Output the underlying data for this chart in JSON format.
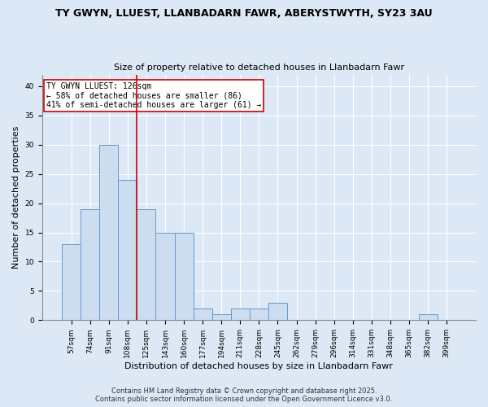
{
  "title1": "TY GWYN, LLUEST, LLANBADARN FAWR, ABERYSTWYTH, SY23 3AU",
  "title2": "Size of property relative to detached houses in Llanbadarn Fawr",
  "xlabel": "Distribution of detached houses by size in Llanbadarn Fawr",
  "ylabel": "Number of detached properties",
  "categories": [
    "57sqm",
    "74sqm",
    "91sqm",
    "108sqm",
    "125sqm",
    "143sqm",
    "160sqm",
    "177sqm",
    "194sqm",
    "211sqm",
    "228sqm",
    "245sqm",
    "262sqm",
    "279sqm",
    "296sqm",
    "314sqm",
    "331sqm",
    "348sqm",
    "365sqm",
    "382sqm",
    "399sqm"
  ],
  "values": [
    13,
    19,
    30,
    24,
    19,
    15,
    15,
    2,
    1,
    2,
    2,
    3,
    0,
    0,
    0,
    0,
    0,
    0,
    0,
    1,
    0
  ],
  "bar_color": "#ccddf0",
  "bar_edge_color": "#6699cc",
  "property_line_x": 3.5,
  "annotation_text1": "TY GWYN LLUEST: 126sqm",
  "annotation_text2": "← 58% of detached houses are smaller (86)",
  "annotation_text3": "41% of semi-detached houses are larger (61) →",
  "annotation_box_color": "white",
  "annotation_box_edge": "#cc0000",
  "vline_color": "#cc0000",
  "ylim": [
    0,
    42
  ],
  "yticks": [
    0,
    5,
    10,
    15,
    20,
    25,
    30,
    35,
    40
  ],
  "footer1": "Contains HM Land Registry data © Crown copyright and database right 2025.",
  "footer2": "Contains public sector information licensed under the Open Government Licence v3.0.",
  "bg_color": "#dce8f5",
  "plot_bg_color": "#dce8f5",
  "grid_color": "#ffffff",
  "title1_fontsize": 9,
  "title2_fontsize": 8,
  "tick_fontsize": 6.5,
  "label_fontsize": 8,
  "annot_fontsize": 7,
  "footer_fontsize": 6
}
